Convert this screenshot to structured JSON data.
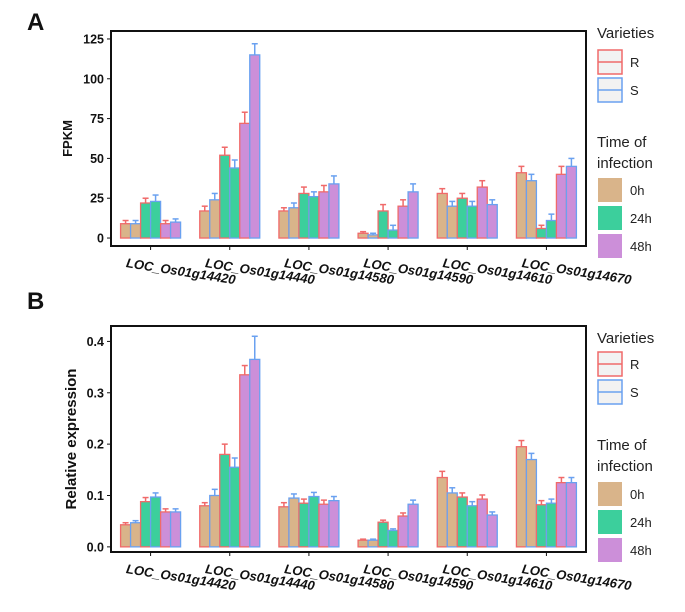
{
  "chart_data": [
    {
      "panel_label": "A",
      "type": "bar",
      "ylabel": "FPKM",
      "ylim": [
        -5,
        130
      ],
      "yticks": [
        "0",
        "25",
        "50",
        "75",
        "100",
        "125"
      ],
      "categories": [
        "LOC_Os01g14420",
        "LOC_Os01g14440",
        "LOC_Os01g14580",
        "LOC_Os01g14590",
        "LOC_Os01g14610",
        "LOC_Os01g14670"
      ],
      "series": [
        {
          "name": "R-0h",
          "variety": "R",
          "time": "0h",
          "values": [
            9,
            17,
            17,
            3,
            28,
            41
          ],
          "errors": [
            2,
            3,
            2,
            1,
            3,
            4
          ]
        },
        {
          "name": "S-0h",
          "variety": "S",
          "time": "0h",
          "values": [
            9,
            24,
            19,
            2,
            20,
            36
          ],
          "errors": [
            2,
            4,
            3,
            1,
            3,
            4
          ]
        },
        {
          "name": "R-24h",
          "variety": "R",
          "time": "24h",
          "values": [
            22,
            52,
            28,
            17,
            25,
            6
          ],
          "errors": [
            3,
            5,
            4,
            4,
            3,
            2
          ]
        },
        {
          "name": "S-24h",
          "variety": "S",
          "time": "24h",
          "values": [
            23,
            44,
            26,
            5,
            20,
            11
          ],
          "errors": [
            4,
            5,
            3,
            3,
            3,
            4
          ]
        },
        {
          "name": "R-48h",
          "variety": "R",
          "time": "48h",
          "values": [
            9,
            72,
            29,
            20,
            32,
            40
          ],
          "errors": [
            2,
            7,
            4,
            4,
            4,
            5
          ]
        },
        {
          "name": "S-48h",
          "variety": "S",
          "time": "48h",
          "values": [
            10,
            115,
            34,
            29,
            21,
            45
          ],
          "errors": [
            2,
            7,
            5,
            5,
            3,
            5
          ]
        }
      ]
    },
    {
      "panel_label": "B",
      "type": "bar",
      "ylabel": "Relative expression",
      "ylim": [
        -0.01,
        0.43
      ],
      "yticks": [
        "0.0",
        "0.1",
        "0.2",
        "0.3",
        "0.4"
      ],
      "categories": [
        "LOC_Os01g14420",
        "LOC_Os01g14440",
        "LOC_Os01g14580",
        "LOC_Os01g14590",
        "LOC_Os01g14610",
        "LOC_Os01g14670"
      ],
      "series": [
        {
          "name": "R-0h",
          "variety": "R",
          "time": "0h",
          "values": [
            0.043,
            0.08,
            0.078,
            0.013,
            0.135,
            0.195
          ],
          "errors": [
            0.004,
            0.006,
            0.008,
            0.002,
            0.012,
            0.012
          ]
        },
        {
          "name": "S-0h",
          "variety": "S",
          "time": "0h",
          "values": [
            0.047,
            0.1,
            0.095,
            0.013,
            0.105,
            0.17
          ],
          "errors": [
            0.004,
            0.012,
            0.008,
            0.002,
            0.01,
            0.012
          ]
        },
        {
          "name": "R-24h",
          "variety": "R",
          "time": "24h",
          "values": [
            0.088,
            0.18,
            0.085,
            0.048,
            0.097,
            0.082
          ],
          "errors": [
            0.008,
            0.02,
            0.008,
            0.004,
            0.008,
            0.008
          ]
        },
        {
          "name": "S-24h",
          "variety": "S",
          "time": "24h",
          "values": [
            0.097,
            0.155,
            0.098,
            0.032,
            0.08,
            0.085
          ],
          "errors": [
            0.008,
            0.018,
            0.008,
            0.003,
            0.008,
            0.008
          ]
        },
        {
          "name": "R-48h",
          "variety": "R",
          "time": "48h",
          "values": [
            0.068,
            0.335,
            0.083,
            0.06,
            0.093,
            0.125
          ],
          "errors": [
            0.006,
            0.018,
            0.008,
            0.006,
            0.008,
            0.01
          ]
        },
        {
          "name": "S-48h",
          "variety": "S",
          "time": "48h",
          "values": [
            0.068,
            0.365,
            0.09,
            0.083,
            0.062,
            0.125
          ],
          "errors": [
            0.006,
            0.045,
            0.008,
            0.008,
            0.006,
            0.01
          ]
        }
      ]
    }
  ],
  "legends": [
    {
      "varieties_title": "Varieties",
      "varieties": [
        {
          "label": "R",
          "color": "#f06a6a"
        },
        {
          "label": "S",
          "color": "#6aa1f0"
        }
      ],
      "time_title_line1": "Time of",
      "time_title_line2": "infection",
      "times": [
        {
          "label": "0h",
          "color": "#d9b48a"
        },
        {
          "label": "24h",
          "color": "#3ccf9c"
        },
        {
          "label": "48h",
          "color": "#cc8fd9"
        }
      ]
    },
    {
      "varieties_title": "Varieties",
      "varieties": [
        {
          "label": "R",
          "color": "#f06a6a"
        },
        {
          "label": "S",
          "color": "#6aa1f0"
        }
      ],
      "time_title_line1": "Time of",
      "time_title_line2": "infection",
      "times": [
        {
          "label": "0h",
          "color": "#d9b48a"
        },
        {
          "label": "24h",
          "color": "#3ccf9c"
        },
        {
          "label": "48h",
          "color": "#cc8fd9"
        }
      ]
    }
  ]
}
